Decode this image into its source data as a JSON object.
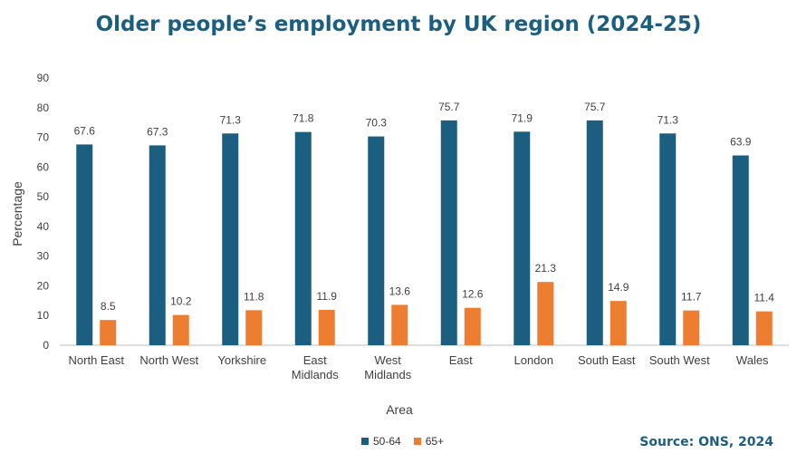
{
  "chart_data": {
    "type": "bar",
    "title": "Older people’s employment by UK region (2024-25)",
    "xlabel": "Area",
    "ylabel": "Percentage",
    "ylim": [
      0,
      90
    ],
    "yticks": [
      0,
      10,
      20,
      30,
      40,
      50,
      60,
      70,
      80,
      90
    ],
    "grid": false,
    "legend_position": "bottom",
    "categories": [
      [
        "North East"
      ],
      [
        "North West"
      ],
      [
        "Yorkshire"
      ],
      [
        "East",
        "Midlands"
      ],
      [
        "West",
        "Midlands"
      ],
      [
        "East"
      ],
      [
        "London"
      ],
      [
        "South East"
      ],
      [
        "South West"
      ],
      [
        "Wales"
      ]
    ],
    "series": [
      {
        "name": "50-64",
        "color": "#1b5e80",
        "values": [
          67.6,
          67.3,
          71.3,
          71.8,
          70.3,
          75.7,
          71.9,
          75.7,
          71.3,
          63.9
        ]
      },
      {
        "name": "65+",
        "color": "#ed7d31",
        "values": [
          8.5,
          10.2,
          11.8,
          11.9,
          13.6,
          12.6,
          21.3,
          14.9,
          11.7,
          11.4
        ]
      }
    ]
  },
  "source": "Source: ONS, 2024"
}
